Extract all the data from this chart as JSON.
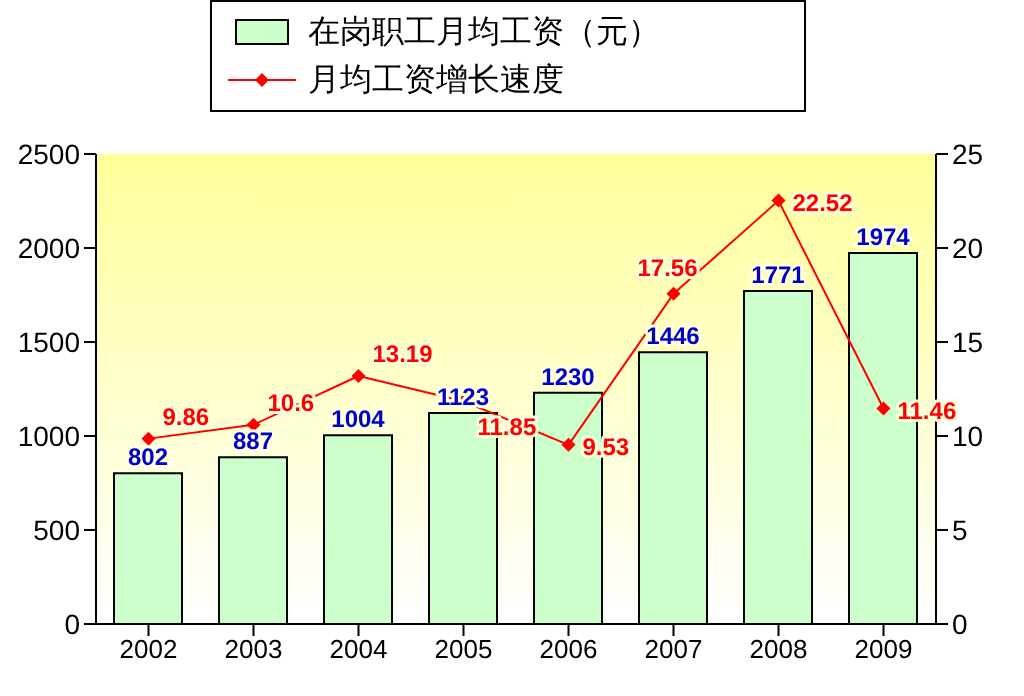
{
  "chart_data": {
    "type": "bar",
    "categories": [
      "2002",
      "2003",
      "2004",
      "2005",
      "2006",
      "2007",
      "2008",
      "2009"
    ],
    "series": [
      {
        "name": "在岗职工月均工资（元）",
        "color": "#ccffcc",
        "values": [
          802,
          887,
          1004,
          1123,
          1230,
          1446,
          1771,
          1974
        ]
      },
      {
        "name": "月均工资增长速度",
        "type": "line",
        "axis": "y2",
        "color": "#ff0000",
        "values": [
          9.86,
          10.6,
          13.19,
          11.85,
          9.53,
          17.56,
          22.52,
          11.46
        ]
      }
    ],
    "ylim": [
      0,
      2500
    ],
    "yticks": [
      0,
      500,
      1000,
      1500,
      2000,
      2500
    ],
    "y2lim": [
      0,
      25
    ],
    "y2ticks": [
      0,
      5,
      10,
      15,
      20,
      25
    ],
    "data_labels": true,
    "legend": "top",
    "marker": "diamond",
    "grid": false
  }
}
